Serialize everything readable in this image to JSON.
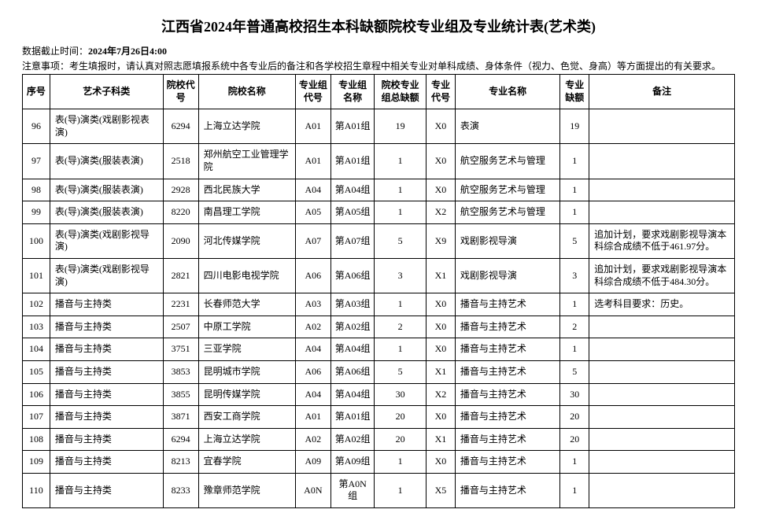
{
  "title": "江西省2024年普通高校招生本科缺额院校专业组及专业统计表(艺术类)",
  "meta": {
    "deadline_label": "数据截止时间：",
    "deadline_value": "2024年7月26日4:00",
    "notice_label": "注意事项：",
    "notice_value": "考生填报时，请认真对照志愿填报系统中各专业后的备注和各学校招生章程中相关专业对单科成绩、身体条件（视力、色觉、身高）等方面提出的有关要求。"
  },
  "headers": {
    "seq": "序号",
    "subject": "艺术子科类",
    "school_id": "院校代号",
    "school_name": "院校名称",
    "group_code": "专业组代号",
    "group_name": "专业组名称",
    "group_vacancy": "院校专业组总缺额",
    "major_code": "专业代号",
    "major_name": "专业名称",
    "major_vacancy": "专业缺额",
    "note": "备注"
  },
  "rows": [
    {
      "seq": "96",
      "subject": "表(导)演类(戏剧影视表演)",
      "sid": "6294",
      "sname": "上海立达学院",
      "gcode": "A01",
      "gname": "第A01组",
      "gvac": "19",
      "mcode": "X0",
      "mname": "表演",
      "mvac": "19",
      "note": ""
    },
    {
      "seq": "97",
      "subject": "表(导)演类(服装表演)",
      "sid": "2518",
      "sname": "郑州航空工业管理学院",
      "gcode": "A01",
      "gname": "第A01组",
      "gvac": "1",
      "mcode": "X0",
      "mname": "航空服务艺术与管理",
      "mvac": "1",
      "note": ""
    },
    {
      "seq": "98",
      "subject": "表(导)演类(服装表演)",
      "sid": "2928",
      "sname": "西北民族大学",
      "gcode": "A04",
      "gname": "第A04组",
      "gvac": "1",
      "mcode": "X0",
      "mname": "航空服务艺术与管理",
      "mvac": "1",
      "note": ""
    },
    {
      "seq": "99",
      "subject": "表(导)演类(服装表演)",
      "sid": "8220",
      "sname": "南昌理工学院",
      "gcode": "A05",
      "gname": "第A05组",
      "gvac": "1",
      "mcode": "X2",
      "mname": "航空服务艺术与管理",
      "mvac": "1",
      "note": ""
    },
    {
      "seq": "100",
      "subject": "表(导)演类(戏剧影视导演)",
      "sid": "2090",
      "sname": "河北传媒学院",
      "gcode": "A07",
      "gname": "第A07组",
      "gvac": "5",
      "mcode": "X9",
      "mname": "戏剧影视导演",
      "mvac": "5",
      "note": "追加计划，要求戏剧影视导演本科综合成绩不低于461.97分。"
    },
    {
      "seq": "101",
      "subject": "表(导)演类(戏剧影视导演)",
      "sid": "2821",
      "sname": "四川电影电视学院",
      "gcode": "A06",
      "gname": "第A06组",
      "gvac": "3",
      "mcode": "X1",
      "mname": "戏剧影视导演",
      "mvac": "3",
      "note": "追加计划，要求戏剧影视导演本科综合成绩不低于484.30分。"
    },
    {
      "seq": "102",
      "subject": "播音与主持类",
      "sid": "2231",
      "sname": "长春师范大学",
      "gcode": "A03",
      "gname": "第A03组",
      "gvac": "1",
      "mcode": "X0",
      "mname": "播音与主持艺术",
      "mvac": "1",
      "note": "选考科目要求：历史。"
    },
    {
      "seq": "103",
      "subject": "播音与主持类",
      "sid": "2507",
      "sname": "中原工学院",
      "gcode": "A02",
      "gname": "第A02组",
      "gvac": "2",
      "mcode": "X0",
      "mname": "播音与主持艺术",
      "mvac": "2",
      "note": ""
    },
    {
      "seq": "104",
      "subject": "播音与主持类",
      "sid": "3751",
      "sname": "三亚学院",
      "gcode": "A04",
      "gname": "第A04组",
      "gvac": "1",
      "mcode": "X0",
      "mname": "播音与主持艺术",
      "mvac": "1",
      "note": ""
    },
    {
      "seq": "105",
      "subject": "播音与主持类",
      "sid": "3853",
      "sname": "昆明城市学院",
      "gcode": "A06",
      "gname": "第A06组",
      "gvac": "5",
      "mcode": "X1",
      "mname": "播音与主持艺术",
      "mvac": "5",
      "note": ""
    },
    {
      "seq": "106",
      "subject": "播音与主持类",
      "sid": "3855",
      "sname": "昆明传媒学院",
      "gcode": "A04",
      "gname": "第A04组",
      "gvac": "30",
      "mcode": "X2",
      "mname": "播音与主持艺术",
      "mvac": "30",
      "note": ""
    },
    {
      "seq": "107",
      "subject": "播音与主持类",
      "sid": "3871",
      "sname": "西安工商学院",
      "gcode": "A01",
      "gname": "第A01组",
      "gvac": "20",
      "mcode": "X0",
      "mname": "播音与主持艺术",
      "mvac": "20",
      "note": ""
    },
    {
      "seq": "108",
      "subject": "播音与主持类",
      "sid": "6294",
      "sname": "上海立达学院",
      "gcode": "A02",
      "gname": "第A02组",
      "gvac": "20",
      "mcode": "X1",
      "mname": "播音与主持艺术",
      "mvac": "20",
      "note": ""
    },
    {
      "seq": "109",
      "subject": "播音与主持类",
      "sid": "8213",
      "sname": "宜春学院",
      "gcode": "A09",
      "gname": "第A09组",
      "gvac": "1",
      "mcode": "X0",
      "mname": "播音与主持艺术",
      "mvac": "1",
      "note": ""
    },
    {
      "seq": "110",
      "subject": "播音与主持类",
      "sid": "8233",
      "sname": "豫章师范学院",
      "gcode": "A0N",
      "gname": "第A0N组",
      "gvac": "1",
      "mcode": "X5",
      "mname": "播音与主持艺术",
      "mvac": "1",
      "note": ""
    }
  ]
}
